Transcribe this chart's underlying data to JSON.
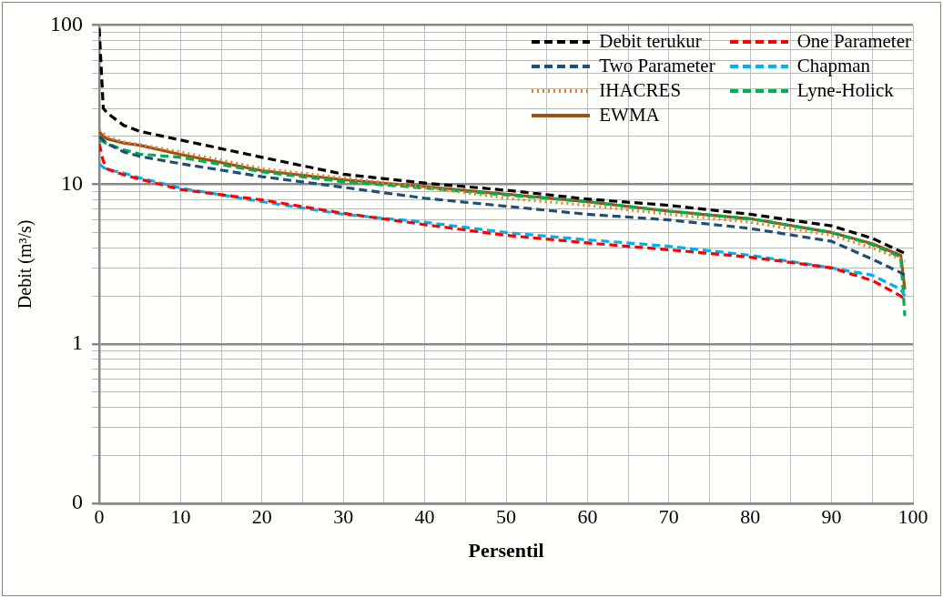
{
  "chart_data": {
    "type": "line",
    "xlabel": "Persentil",
    "ylabel": "Debit (m³/s)",
    "log": "y",
    "xlim": [
      0,
      100
    ],
    "xticks": [
      0,
      {
        "value": 5,
        "label": null
      },
      10,
      {
        "value": 15,
        "label": null
      },
      20,
      {
        "value": 25,
        "label": null
      },
      30,
      {
        "value": 35,
        "label": null
      },
      40,
      {
        "value": 45,
        "label": null
      },
      50,
      {
        "value": 55,
        "label": null
      },
      60,
      {
        "value": 65,
        "label": null
      },
      70,
      {
        "value": 75,
        "label": null
      },
      80,
      {
        "value": 85,
        "label": null
      },
      90,
      {
        "value": 95,
        "label": null
      },
      100
    ],
    "ylim": [
      0.1,
      100
    ],
    "yticks": [
      {
        "value": 0.1,
        "label": "0"
      },
      {
        "value": 0.2,
        "label": null
      },
      {
        "value": 0.3,
        "label": null
      },
      {
        "value": 0.4,
        "label": null
      },
      {
        "value": 0.5,
        "label": null
      },
      {
        "value": 0.6,
        "label": null
      },
      {
        "value": 0.7,
        "label": null
      },
      {
        "value": 0.8,
        "label": null
      },
      {
        "value": 0.9,
        "label": null
      },
      1,
      {
        "value": 2,
        "label": null
      },
      {
        "value": 3,
        "label": null
      },
      {
        "value": 4,
        "label": null
      },
      {
        "value": 5,
        "label": null
      },
      {
        "value": 6,
        "label": null
      },
      {
        "value": 7,
        "label": null
      },
      {
        "value": 8,
        "label": null
      },
      {
        "value": 9,
        "label": null
      },
      10,
      {
        "value": 20,
        "label": null
      },
      {
        "value": 30,
        "label": null
      },
      {
        "value": 40,
        "label": null
      },
      {
        "value": 50,
        "label": null
      },
      {
        "value": 60,
        "label": null
      },
      {
        "value": 70,
        "label": null
      },
      {
        "value": 80,
        "label": null
      },
      {
        "value": 90,
        "label": null
      },
      100
    ],
    "grid": true,
    "legend": "top right",
    "marker": "none",
    "x": [
      0,
      0.5,
      1,
      3,
      5,
      10,
      20,
      30,
      40,
      50,
      60,
      70,
      80,
      90,
      95,
      98.5,
      99
    ],
    "series": [
      {
        "name": "Debit terukur",
        "color": "#000000",
        "line_style": "dashed",
        "values": [
          95,
          30,
          28,
          23.5,
          21.5,
          19,
          14.8,
          11.6,
          10.2,
          9.2,
          8.1,
          7.4,
          6.5,
          5.5,
          4.6,
          3.8,
          3.7
        ]
      },
      {
        "name": "One Parameter",
        "color": "#ff0000",
        "line_style": "dashed",
        "values": [
          18,
          14,
          12.5,
          11.5,
          10.8,
          9.3,
          8,
          6.6,
          5.6,
          4.8,
          4.3,
          3.9,
          3.5,
          3,
          2.5,
          2,
          1.9
        ]
      },
      {
        "name": "Two Parameter",
        "color": "#1f4e79",
        "line_style": "dashed",
        "values": [
          20,
          19,
          18,
          16,
          15,
          13.5,
          11.2,
          9.6,
          8.2,
          7.3,
          6.5,
          6,
          5.3,
          4.4,
          3.4,
          2.8,
          2.7
        ]
      },
      {
        "name": "Chapman",
        "color": "#00b0f0",
        "line_style": "dashed",
        "values": [
          13.5,
          12.8,
          12.4,
          11.8,
          11,
          9.5,
          7.8,
          6.5,
          5.8,
          5,
          4.5,
          4.1,
          3.6,
          3,
          2.7,
          2.2,
          2
        ]
      },
      {
        "name": "IHACRES",
        "color": "#ed7d31",
        "line_style": "dotted",
        "values": [
          22,
          21,
          20,
          18.5,
          17.8,
          16,
          12.6,
          11,
          9.6,
          8.2,
          7.4,
          6.5,
          5.8,
          4.8,
          4,
          3.4,
          3.3
        ]
      },
      {
        "name": "Lyne-Holick",
        "color": "#00b050",
        "line_style": "dashed",
        "values": [
          19,
          18.5,
          18,
          16.5,
          15.5,
          14.8,
          12,
          10.4,
          9.5,
          8.6,
          7.8,
          6.8,
          6.1,
          5,
          4.2,
          3.5,
          1.5
        ]
      },
      {
        "name": "EWMA",
        "color": "#9c5212",
        "line_style": "solid",
        "values": [
          21.5,
          20,
          19.3,
          18.2,
          17.6,
          15.4,
          12.2,
          10.7,
          9.7,
          8.7,
          7.8,
          6.8,
          6.1,
          5,
          4.25,
          3.6,
          2.2
        ]
      }
    ]
  }
}
